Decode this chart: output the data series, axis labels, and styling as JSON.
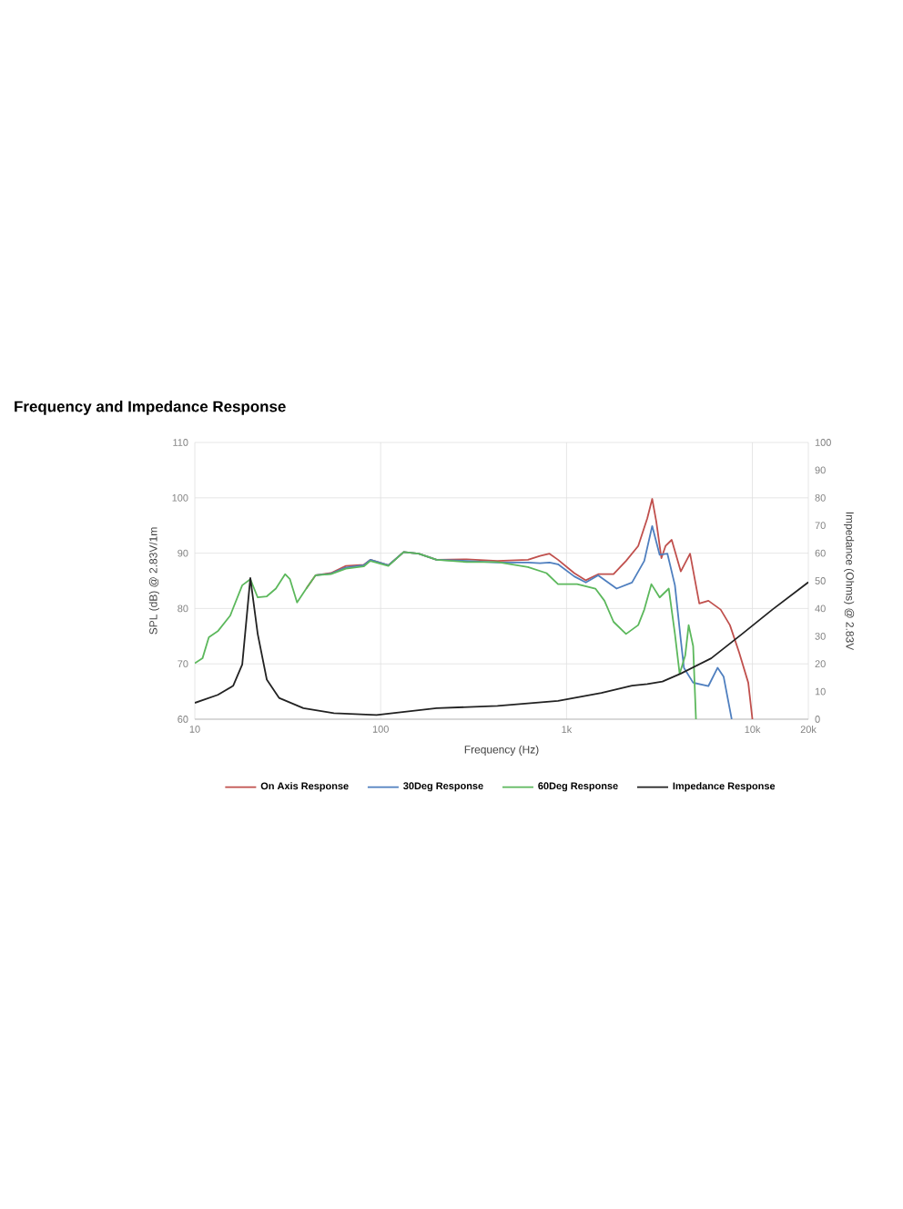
{
  "chart_data": {
    "type": "line",
    "title": "Frequency and Impedance Response",
    "xlabel": "Frequency (Hz)",
    "ylabel": "SPL (dB) @ 2.83V/1m",
    "y2label": "Impedance (Ohms) @ 2.83V",
    "log": "x",
    "xlim": [
      10,
      20000
    ],
    "xticks": [
      {
        "value": 10,
        "label": "10"
      },
      {
        "value": 100,
        "label": "100"
      },
      {
        "value": 1000,
        "label": "1k"
      },
      {
        "value": 10000,
        "label": "10k"
      },
      {
        "value": 20000,
        "label": "20k"
      }
    ],
    "ylim": [
      60,
      110
    ],
    "yticks": [
      60,
      70,
      80,
      90,
      100,
      110
    ],
    "y2lim": [
      0,
      100
    ],
    "y2ticks": [
      0,
      10,
      20,
      30,
      40,
      50,
      60,
      70,
      80,
      90,
      100
    ],
    "grid": true,
    "legend": "bottom",
    "marker": "none",
    "series": [
      {
        "name": "On Axis Response",
        "color": "#c0504d",
        "x": [
          39.8,
          44.6,
          54,
          65,
          81,
          88,
          110,
          133,
          160,
          200,
          290,
          425,
          620,
          720,
          810,
          900,
          1100,
          1270,
          1480,
          1790,
          2090,
          2430,
          2720,
          2890,
          3040,
          3240,
          3410,
          3680,
          4120,
          4620,
          5180,
          5800,
          6750,
          7570,
          8480,
          9500,
          10000
        ],
        "values": [
          83.6,
          86.0,
          86.4,
          87.7,
          87.9,
          88.8,
          87.8,
          90.2,
          89.9,
          88.8,
          88.9,
          88.6,
          88.8,
          89.5,
          89.9,
          88.8,
          86.4,
          85.1,
          86.2,
          86.2,
          88.6,
          91.3,
          96.3,
          99.8,
          95.7,
          89.1,
          91.3,
          92.4,
          86.7,
          89.9,
          80.9,
          81.4,
          79.8,
          77.0,
          72.1,
          66.6,
          60
        ]
      },
      {
        "name": "30Deg Response",
        "color": "#4f7fbf",
        "x": [
          44.6,
          54,
          65,
          81,
          88,
          110,
          133,
          160,
          200,
          290,
          425,
          620,
          720,
          810,
          900,
          1100,
          1270,
          1480,
          1860,
          2250,
          2620,
          2890,
          3170,
          3490,
          3830,
          4120,
          4280,
          4800,
          5800,
          6500,
          7000,
          7740
        ],
        "values": [
          86.0,
          86.3,
          87.4,
          87.8,
          88.8,
          87.8,
          90.2,
          89.9,
          88.8,
          88.6,
          88.3,
          88.3,
          88.2,
          88.3,
          88.0,
          85.8,
          84.7,
          86.0,
          83.6,
          84.7,
          88.6,
          94.9,
          89.7,
          89.9,
          84.2,
          74.3,
          69.3,
          66.6,
          66.0,
          69.3,
          67.7,
          60
        ]
      },
      {
        "name": "60Deg Response",
        "color": "#5cb85c",
        "x": [
          10,
          11,
          11.9,
          13.3,
          15.5,
          18,
          19.9,
          21.8,
          24.4,
          27.3,
          30.6,
          32.5,
          35.5,
          39.8,
          44.6,
          54,
          65,
          81,
          88,
          110,
          133,
          160,
          200,
          290,
          425,
          620,
          780,
          900,
          1140,
          1430,
          1600,
          1790,
          2090,
          2430,
          2620,
          2860,
          3170,
          3550,
          3830,
          4060,
          4350,
          4540,
          4800,
          4970
        ],
        "values": [
          70.1,
          71,
          74.8,
          75.9,
          78.7,
          84.2,
          85.3,
          82.0,
          82.2,
          83.6,
          86.2,
          85.3,
          81.1,
          83.6,
          86.0,
          86.2,
          87.2,
          87.6,
          88.6,
          87.7,
          90.2,
          89.9,
          88.8,
          88.4,
          88.4,
          87.5,
          86.4,
          84.4,
          84.4,
          83.6,
          81.4,
          77.6,
          75.4,
          77.0,
          79.8,
          84.4,
          82.0,
          83.6,
          75.4,
          68.2,
          71.5,
          77.0,
          73.2,
          60
        ]
      },
      {
        "name": "Impedance Response",
        "color": "#222222",
        "axis": "y2",
        "x": [
          10,
          13.3,
          16.1,
          18,
          19.9,
          21.8,
          24.4,
          28.4,
          38.4,
          56,
          95,
          200,
          425,
          900,
          1540,
          2250,
          2720,
          3280,
          4120,
          6000,
          8800,
          12800,
          20000
        ],
        "values": [
          5.9,
          8.8,
          12.1,
          19.8,
          51,
          30.8,
          14.3,
          7.7,
          4.0,
          2.2,
          1.5,
          4.0,
          4.8,
          6.6,
          9.5,
          12.1,
          12.7,
          13.6,
          16.5,
          22.0,
          30.8,
          39.6,
          49.5
        ]
      }
    ]
  }
}
